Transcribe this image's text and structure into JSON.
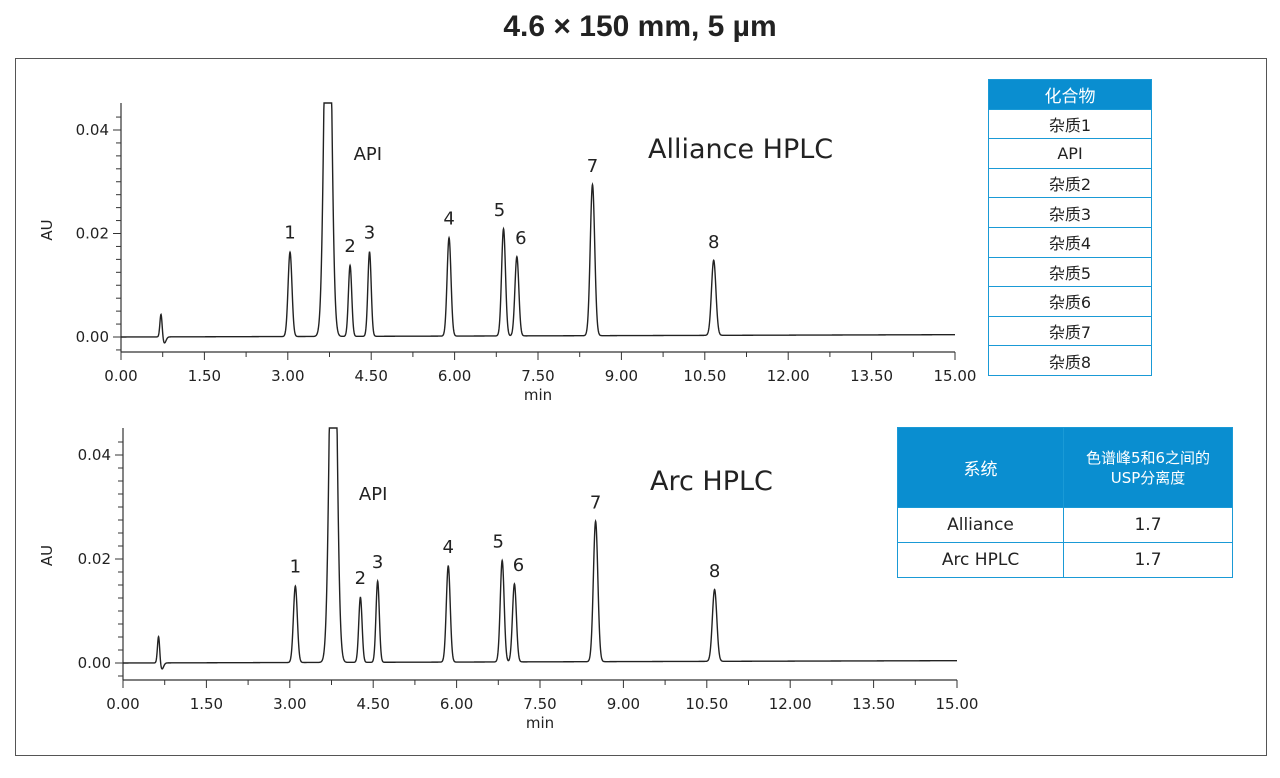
{
  "title": "4.6 × 150 mm, 5 µm",
  "chart_data": [
    {
      "type": "line",
      "system_label": "Alliance HPLC",
      "xlabel": "min",
      "ylabel": "AU",
      "xlim": [
        0,
        15
      ],
      "ylim": [
        -0.003,
        0.045
      ],
      "x_ticks": [
        "0.00",
        "1.50",
        "3.00",
        "4.50",
        "6.00",
        "7.50",
        "9.00",
        "10.50",
        "12.00",
        "13.50",
        "15.00"
      ],
      "y_ticks": [
        "0.00",
        "0.02",
        "0.04"
      ],
      "peaks": [
        {
          "label": "",
          "rt": 0.72,
          "height": 0.0045,
          "width": 0.02
        },
        {
          "label": "1",
          "rt": 3.04,
          "height": 0.0163,
          "width": 0.035
        },
        {
          "label": "API",
          "rt": 3.72,
          "height": 0.09,
          "width": 0.06
        },
        {
          "label": "2",
          "rt": 4.12,
          "height": 0.0137,
          "width": 0.03
        },
        {
          "label": "3",
          "rt": 4.47,
          "height": 0.0163,
          "width": 0.03
        },
        {
          "label": "4",
          "rt": 5.9,
          "height": 0.019,
          "width": 0.035
        },
        {
          "label": "5",
          "rt": 6.88,
          "height": 0.0207,
          "width": 0.035
        },
        {
          "label": "6",
          "rt": 7.12,
          "height": 0.0153,
          "width": 0.035
        },
        {
          "label": "7",
          "rt": 8.48,
          "height": 0.0292,
          "width": 0.04
        },
        {
          "label": "8",
          "rt": 10.66,
          "height": 0.0145,
          "width": 0.04
        }
      ]
    },
    {
      "type": "line",
      "system_label": "Arc HPLC",
      "xlabel": "min",
      "ylabel": "AU",
      "xlim": [
        0,
        15
      ],
      "ylim": [
        -0.003,
        0.045
      ],
      "x_ticks": [
        "0.00",
        "1.50",
        "3.00",
        "4.50",
        "6.00",
        "7.50",
        "9.00",
        "10.50",
        "12.00",
        "13.50",
        "15.00"
      ],
      "y_ticks": [
        "0.00",
        "0.02",
        "0.04"
      ],
      "peaks": [
        {
          "label": "",
          "rt": 0.64,
          "height": 0.0052,
          "width": 0.02
        },
        {
          "label": "1",
          "rt": 3.1,
          "height": 0.0147,
          "width": 0.035
        },
        {
          "label": "API",
          "rt": 3.78,
          "height": 0.09,
          "width": 0.06
        },
        {
          "label": "2",
          "rt": 4.27,
          "height": 0.0125,
          "width": 0.03
        },
        {
          "label": "3",
          "rt": 4.58,
          "height": 0.0156,
          "width": 0.03
        },
        {
          "label": "4",
          "rt": 5.85,
          "height": 0.0185,
          "width": 0.035
        },
        {
          "label": "5",
          "rt": 6.82,
          "height": 0.0195,
          "width": 0.035
        },
        {
          "label": "6",
          "rt": 7.04,
          "height": 0.015,
          "width": 0.035
        },
        {
          "label": "7",
          "rt": 8.5,
          "height": 0.027,
          "width": 0.04
        },
        {
          "label": "8",
          "rt": 10.64,
          "height": 0.0138,
          "width": 0.04
        }
      ]
    }
  ],
  "compound_table": {
    "header": "化合物",
    "rows": [
      "杂质1",
      "API",
      "杂质2",
      "杂质3",
      "杂质4",
      "杂质5",
      "杂质6",
      "杂质7",
      "杂质8"
    ]
  },
  "resolution_table": {
    "header_system": "系统",
    "header_resolution_line1": "色谱峰5和6之间的",
    "header_resolution_line2": "USP分离度",
    "rows": [
      {
        "system": "Alliance",
        "value": "1.7"
      },
      {
        "system": "Arc HPLC",
        "value": "1.7"
      }
    ]
  }
}
